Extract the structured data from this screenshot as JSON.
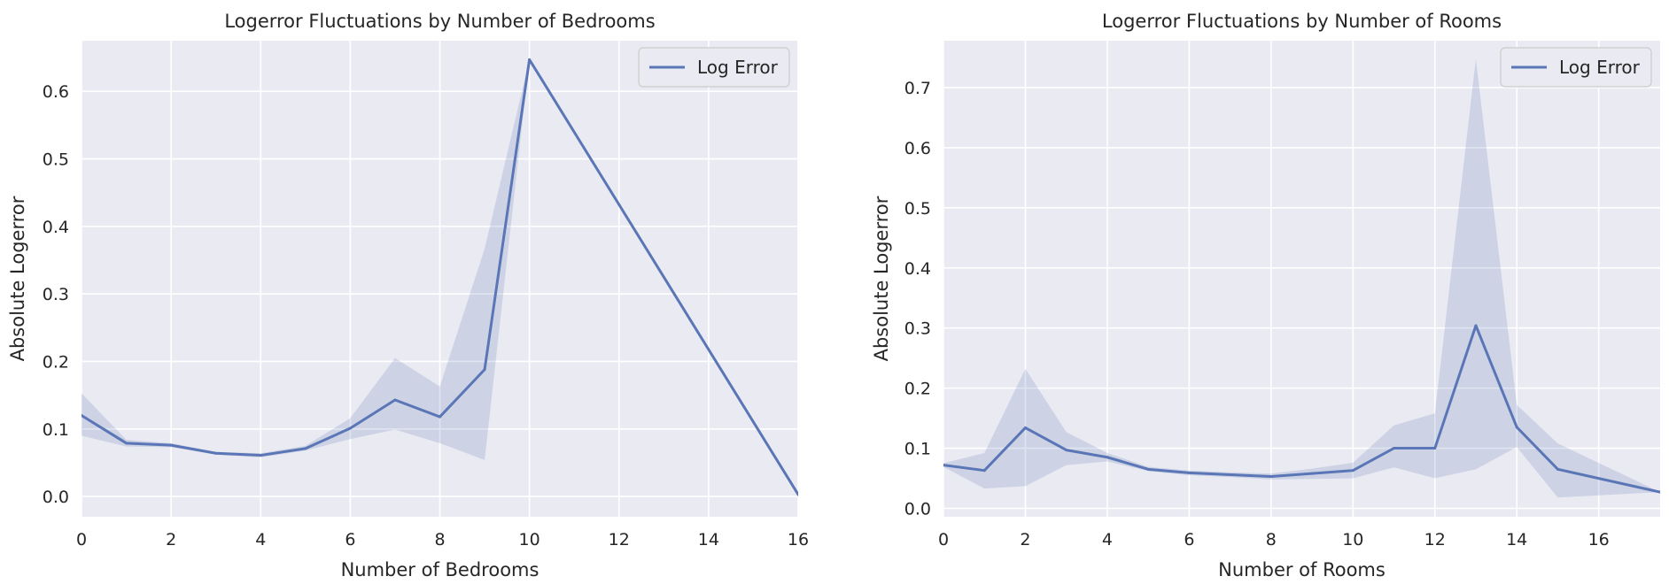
{
  "colors": {
    "line": "#5a76b6",
    "band": "#5a76b6"
  },
  "chart_data": [
    {
      "type": "line",
      "title": "Logerror Fluctuations by Number of Bedrooms",
      "xlabel": "Number of Bedrooms",
      "ylabel": "Absolute Logerror",
      "xlim": [
        0,
        16
      ],
      "ylim": [
        -0.03,
        0.675
      ],
      "xticks": [
        "0",
        "2",
        "4",
        "6",
        "8",
        "10",
        "12",
        "14",
        "16"
      ],
      "yticks": [
        "0.0",
        "0.1",
        "0.2",
        "0.3",
        "0.4",
        "0.5",
        "0.6"
      ],
      "grid": true,
      "legend_position": "top-right",
      "series": [
        {
          "name": "Log Error",
          "x": [
            0,
            1,
            2,
            3,
            4,
            5,
            6,
            7,
            8,
            9,
            10,
            16
          ],
          "y": [
            0.12,
            0.079,
            0.076,
            0.064,
            0.061,
            0.071,
            0.101,
            0.143,
            0.118,
            0.188,
            0.647,
            0.003
          ],
          "ci_low": [
            0.09,
            0.074,
            0.073,
            0.062,
            0.058,
            0.068,
            0.085,
            0.099,
            0.079,
            0.054,
            0.647,
            0.003
          ],
          "ci_high": [
            0.153,
            0.084,
            0.079,
            0.066,
            0.064,
            0.075,
            0.116,
            0.205,
            0.163,
            0.367,
            0.647,
            0.003
          ]
        }
      ]
    },
    {
      "type": "line",
      "title": "Logerror Fluctuations by Number of Rooms",
      "xlabel": "Number of Rooms",
      "ylabel": "Absolute Logerror",
      "xlim": [
        0,
        17.5
      ],
      "ylim": [
        -0.014,
        0.778
      ],
      "xticks": [
        "0",
        "2",
        "4",
        "6",
        "8",
        "10",
        "12",
        "14",
        "16"
      ],
      "yticks": [
        "0.0",
        "0.1",
        "0.2",
        "0.3",
        "0.4",
        "0.5",
        "0.6",
        "0.7"
      ],
      "grid": true,
      "legend_position": "top-right",
      "series": [
        {
          "name": "Log Error",
          "x": [
            0,
            1,
            2,
            3,
            4,
            5,
            6,
            7,
            8,
            9,
            10,
            11,
            12,
            13,
            14,
            15,
            17.5
          ],
          "y": [
            0.072,
            0.063,
            0.134,
            0.097,
            0.085,
            0.065,
            0.059,
            0.056,
            0.053,
            0.058,
            0.063,
            0.1,
            0.1,
            0.304,
            0.135,
            0.065,
            0.027
          ],
          "ci_low": [
            0.069,
            0.033,
            0.037,
            0.072,
            0.078,
            0.062,
            0.055,
            0.052,
            0.048,
            0.049,
            0.05,
            0.068,
            0.05,
            0.065,
            0.102,
            0.018,
            0.027
          ],
          "ci_high": [
            0.075,
            0.092,
            0.232,
            0.127,
            0.092,
            0.069,
            0.063,
            0.06,
            0.058,
            0.066,
            0.076,
            0.138,
            0.158,
            0.748,
            0.172,
            0.108,
            0.027
          ]
        }
      ]
    }
  ]
}
